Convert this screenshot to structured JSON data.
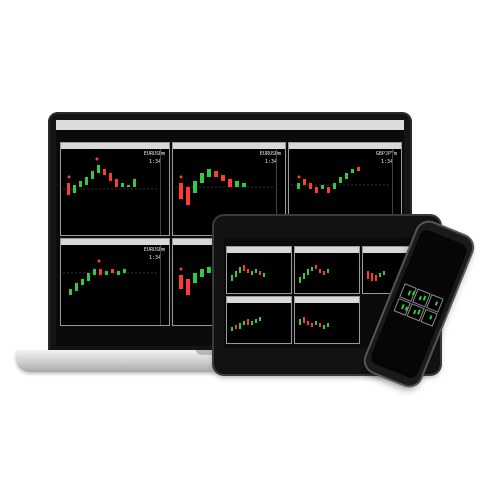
{
  "laptop": {
    "menubar_text": "",
    "charts": [
      {
        "symbol": "EURUSDm",
        "timeframe": "1:34"
      },
      {
        "symbol": "EURUSDm",
        "timeframe": "1:34"
      },
      {
        "symbol": "GBPJPYm",
        "timeframe": "1:34"
      },
      {
        "symbol": "EURUSDm",
        "timeframe": "1:34"
      },
      {
        "symbol": "",
        "timeframe": ""
      }
    ]
  },
  "tablet": {
    "charts": [
      {
        "symbol": "",
        "timeframe": ""
      },
      {
        "symbol": "",
        "timeframe": ""
      },
      {
        "symbol": "",
        "timeframe": ""
      },
      {
        "symbol": "",
        "timeframe": ""
      },
      {
        "symbol": "",
        "timeframe": ""
      }
    ]
  },
  "phone": {
    "grid_cells": 6
  },
  "colors": {
    "bull": "#2ecc40",
    "bear": "#ff3b30",
    "background": "#000000",
    "frame": "#141414"
  },
  "icons": [
    "laptop-device",
    "tablet-device",
    "phone-device"
  ]
}
